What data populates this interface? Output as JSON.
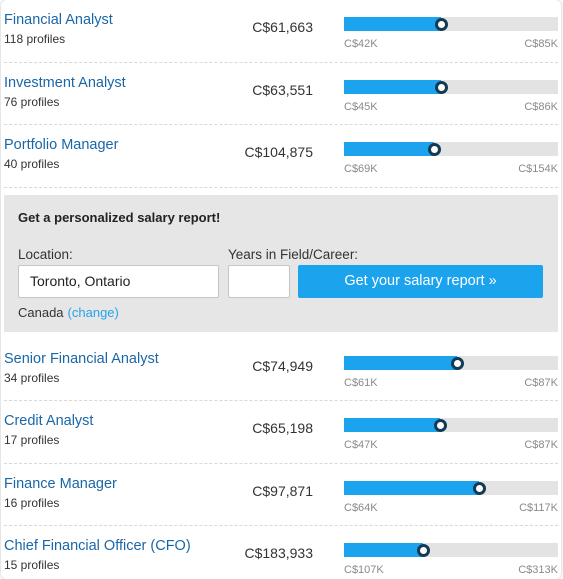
{
  "colors": {
    "link": "#1a67a8",
    "bar_fill": "#1ca3ee",
    "bar_track": "#e3e3e3",
    "knob_ring": "#123a55",
    "cta": "#1ca3ee"
  },
  "rows_top": [
    {
      "title": "Financial Analyst",
      "profiles": "118 profiles",
      "salary": "C$61,663",
      "min": "C$42K",
      "max": "C$85K",
      "fill_pct": 45.5
    },
    {
      "title": "Investment Analyst",
      "profiles": "76 profiles",
      "salary": "C$63,551",
      "min": "C$45K",
      "max": "C$86K",
      "fill_pct": 45.5
    },
    {
      "title": "Portfolio Manager",
      "profiles": "40 profiles",
      "salary": "C$104,875",
      "min": "C$69K",
      "max": "C$154K",
      "fill_pct": 42
    }
  ],
  "promo": {
    "heading": "Get a personalized salary report!",
    "location_label": "Location:",
    "location_value": "Toronto, Ontario",
    "years_label": "Years in Field/Career:",
    "years_value": "",
    "cta_label": "Get your salary report »",
    "country": "Canada",
    "change_label": "(change)"
  },
  "rows_bottom": [
    {
      "title": "Senior Financial Analyst",
      "profiles": "34 profiles",
      "salary": "C$74,949",
      "min": "C$61K",
      "max": "C$87K",
      "fill_pct": 53
    },
    {
      "title": "Credit Analyst",
      "profiles": "17 profiles",
      "salary": "C$65,198",
      "min": "C$47K",
      "max": "C$87K",
      "fill_pct": 45
    },
    {
      "title": "Finance Manager",
      "profiles": "16 profiles",
      "salary": "C$97,871",
      "min": "C$64K",
      "max": "C$117K",
      "fill_pct": 63
    },
    {
      "title": "Chief Financial Officer (CFO)",
      "profiles": "15 profiles",
      "salary": "C$183,933",
      "min": "C$107K",
      "max": "C$313K",
      "fill_pct": 37
    }
  ]
}
